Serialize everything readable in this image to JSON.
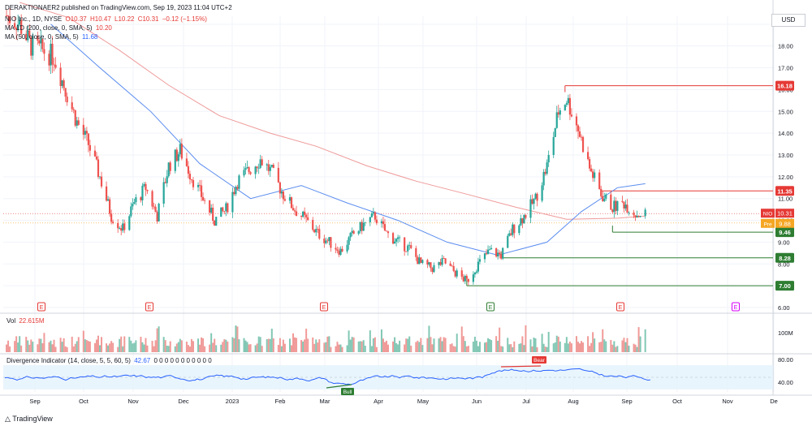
{
  "header": {
    "author_line": "DERAKTIONAER2 published on TradingView.com, Sep 19, 2023 11:04 UTC+2",
    "symbol_line": "NIO Inc., 1D, NYSE",
    "ohlc": [
      "O10.37",
      "H10.47",
      "L10.22",
      "C10.31",
      "−0.12 (−1.15%)"
    ],
    "ma200_label": "MA 1D (200, close, 0, SMA, 5)",
    "ma200_value": "10.20",
    "ma50_label": "MA (50, close, 0, SMA, 5)",
    "ma50_value": "11.68"
  },
  "currency": "USD",
  "volume": {
    "label": "Vol",
    "value": "22.615M",
    "axis_label": "100M"
  },
  "indicator": {
    "label": "Divergence Indicator (14, close, 5, 5, 60, 5)",
    "value": "42.67",
    "zeros": "0 0 0 0 0 0 0 0 0 0 0",
    "axis": [
      "80.00",
      "40.00"
    ],
    "bull_tag": "Bull",
    "bear_tag": "Bear"
  },
  "branding": {
    "logo_text": "TradingView"
  },
  "colors": {
    "up": "#26a69a",
    "down": "#ef5350",
    "ma50": "#5b8def",
    "ma200": "#ef9a9a",
    "res": "#e53935",
    "sup": "#2e7d32"
  },
  "chart_data": {
    "type": "candlestick",
    "y_axis": [
      "19.00",
      "18.00",
      "17.00",
      "16.00",
      "15.00",
      "14.00",
      "13.00",
      "12.00",
      "11.00",
      "10.00",
      "9.00",
      "8.00",
      "7.00",
      "6.00"
    ],
    "x_axis": [
      "Sep",
      "Oct",
      "Nov",
      "Dec",
      "2023",
      "Feb",
      "Mar",
      "Apr",
      "May",
      "Jun",
      "Jul",
      "Aug",
      "Sep",
      "Oct",
      "Nov",
      "De"
    ],
    "events": [
      "E",
      "E",
      "E",
      "E",
      "E",
      "E"
    ],
    "levels": [
      {
        "label": "16.18",
        "value": 16.18,
        "kind": "resistance"
      },
      {
        "label": "11.35",
        "value": 11.35,
        "kind": "resistance"
      },
      {
        "label": "9.46",
        "value": 9.46,
        "kind": "support"
      },
      {
        "label": "8.28",
        "value": 8.28,
        "kind": "support"
      },
      {
        "label": "7.00",
        "value": 7.0,
        "kind": "support"
      }
    ],
    "price_tags": [
      {
        "label": "NIO",
        "value": "10.31"
      },
      {
        "label": "Pre",
        "value": "9.88"
      }
    ],
    "price_path": [
      [
        "2022-08-22",
        19.5
      ],
      [
        "2022-09-01",
        19.0
      ],
      [
        "2022-09-08",
        18.0
      ],
      [
        "2022-09-15",
        17.8
      ],
      [
        "2022-09-22",
        17.5
      ],
      [
        "2022-09-29",
        16.0
      ],
      [
        "2022-10-06",
        14.5
      ],
      [
        "2022-10-13",
        13.5
      ],
      [
        "2022-10-20",
        12.0
      ],
      [
        "2022-10-27",
        10.2
      ],
      [
        "2022-11-03",
        9.6
      ],
      [
        "2022-11-10",
        10.8
      ],
      [
        "2022-11-17",
        11.5
      ],
      [
        "2022-11-24",
        10.2
      ],
      [
        "2022-12-01",
        12.5
      ],
      [
        "2022-12-08",
        13.2
      ],
      [
        "2022-12-15",
        12.0
      ],
      [
        "2022-12-22",
        11.0
      ],
      [
        "2022-12-29",
        10.0
      ],
      [
        "2023-01-05",
        10.5
      ],
      [
        "2023-01-12",
        11.8
      ],
      [
        "2023-01-19",
        12.3
      ],
      [
        "2023-01-26",
        12.8
      ],
      [
        "2023-02-02",
        12.2
      ],
      [
        "2023-02-09",
        11.2
      ],
      [
        "2023-02-16",
        10.5
      ],
      [
        "2023-02-23",
        10.0
      ],
      [
        "2023-03-02",
        9.4
      ],
      [
        "2023-03-09",
        9.0
      ],
      [
        "2023-03-16",
        8.6
      ],
      [
        "2023-03-23",
        9.3
      ],
      [
        "2023-03-30",
        9.8
      ],
      [
        "2023-04-06",
        10.2
      ],
      [
        "2023-04-13",
        9.4
      ],
      [
        "2023-04-20",
        9.0
      ],
      [
        "2023-04-27",
        8.7
      ],
      [
        "2023-05-04",
        8.0
      ],
      [
        "2023-05-11",
        7.8
      ],
      [
        "2023-05-18",
        8.1
      ],
      [
        "2023-05-25",
        7.6
      ],
      [
        "2023-06-01",
        7.2
      ],
      [
        "2023-06-08",
        8.0
      ],
      [
        "2023-06-15",
        8.6
      ],
      [
        "2023-06-22",
        8.4
      ],
      [
        "2023-06-29",
        9.6
      ],
      [
        "2023-07-06",
        10.2
      ],
      [
        "2023-07-13",
        11.0
      ],
      [
        "2023-07-20",
        12.5
      ],
      [
        "2023-07-27",
        15.0
      ],
      [
        "2023-08-01",
        15.6
      ],
      [
        "2023-08-08",
        14.2
      ],
      [
        "2023-08-15",
        12.4
      ],
      [
        "2023-08-22",
        11.2
      ],
      [
        "2023-08-29",
        10.6
      ],
      [
        "2023-09-05",
        10.8
      ],
      [
        "2023-09-12",
        10.3
      ],
      [
        "2023-09-18",
        10.31
      ]
    ],
    "ma50": [
      [
        "2022-09-20",
        19.0
      ],
      [
        "2022-10-20",
        17.0
      ],
      [
        "2022-11-20",
        15.0
      ],
      [
        "2022-12-20",
        12.6
      ],
      [
        "2023-01-20",
        11.0
      ],
      [
        "2023-02-20",
        11.6
      ],
      [
        "2023-03-20",
        10.8
      ],
      [
        "2023-04-20",
        10.0
      ],
      [
        "2023-05-20",
        9.0
      ],
      [
        "2023-06-20",
        8.4
      ],
      [
        "2023-07-20",
        9.0
      ],
      [
        "2023-08-10",
        10.4
      ],
      [
        "2023-09-01",
        11.5
      ],
      [
        "2023-09-18",
        11.68
      ]
    ],
    "ma200": [
      [
        "2022-09-01",
        20.0
      ],
      [
        "2022-10-01",
        19.3
      ],
      [
        "2022-11-01",
        17.8
      ],
      [
        "2022-12-01",
        16.2
      ],
      [
        "2023-01-01",
        14.8
      ],
      [
        "2023-02-01",
        14.0
      ],
      [
        "2023-03-01",
        13.4
      ],
      [
        "2023-04-01",
        12.5
      ],
      [
        "2023-05-01",
        11.8
      ],
      [
        "2023-06-01",
        11.2
      ],
      [
        "2023-07-01",
        10.6
      ],
      [
        "2023-08-01",
        10.05
      ],
      [
        "2023-09-01",
        10.1
      ],
      [
        "2023-09-18",
        10.2
      ]
    ]
  }
}
